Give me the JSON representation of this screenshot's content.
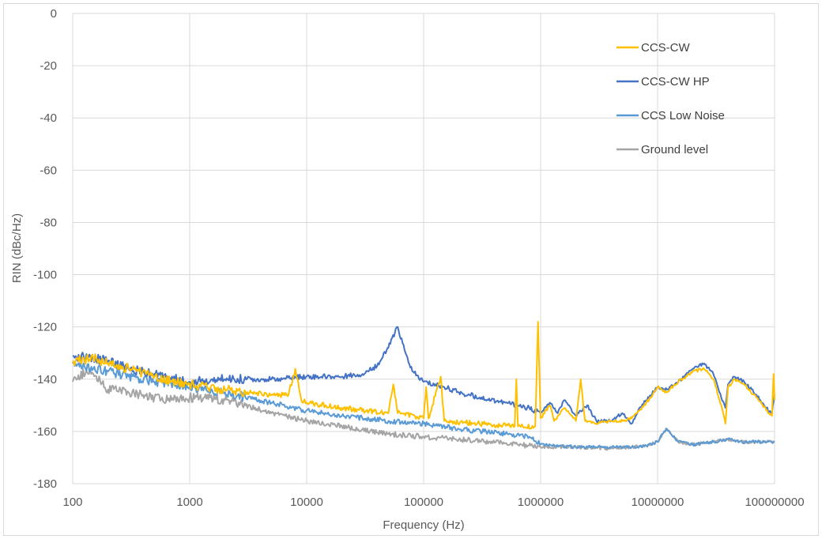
{
  "chart_data": {
    "type": "line",
    "xscale": "log",
    "xlabel": "Frequency (Hz)",
    "ylabel": "RIN (dBc/Hz)",
    "xlim": [
      100,
      100000000
    ],
    "ylim": [
      -180,
      0
    ],
    "x_ticks": [
      "100",
      "1000",
      "10000",
      "100000",
      "1000000",
      "10000000",
      "100000000"
    ],
    "y_ticks": [
      "0",
      "-20",
      "-40",
      "-60",
      "-80",
      "-100",
      "-120",
      "-140",
      "-160",
      "-180"
    ],
    "grid": true,
    "legend_position": "top-right",
    "series": [
      {
        "name": "CCS-CW",
        "color": "#FFC000",
        "points": [
          [
            100,
            -133
          ],
          [
            150,
            -132
          ],
          [
            200,
            -134
          ],
          [
            300,
            -136
          ],
          [
            500,
            -139
          ],
          [
            1000,
            -142
          ],
          [
            2000,
            -144
          ],
          [
            3000,
            -145
          ],
          [
            5000,
            -146
          ],
          [
            7000,
            -146
          ],
          [
            8000,
            -136
          ],
          [
            9000,
            -148
          ],
          [
            10000,
            -149
          ],
          [
            20000,
            -151
          ],
          [
            50000,
            -153
          ],
          [
            55000,
            -142
          ],
          [
            60000,
            -153
          ],
          [
            100000,
            -155
          ],
          [
            105000,
            -143
          ],
          [
            110000,
            -155
          ],
          [
            140000,
            -139
          ],
          [
            150000,
            -156
          ],
          [
            300000,
            -157
          ],
          [
            600000,
            -158
          ],
          [
            620000,
            -140
          ],
          [
            640000,
            -158
          ],
          [
            900000,
            -158
          ],
          [
            950000,
            -118
          ],
          [
            1000000,
            -155
          ],
          [
            1200000,
            -150
          ],
          [
            1300000,
            -156
          ],
          [
            1600000,
            -151
          ],
          [
            2000000,
            -156
          ],
          [
            2200000,
            -140
          ],
          [
            2400000,
            -156
          ],
          [
            3000000,
            -157
          ],
          [
            4000000,
            -156
          ],
          [
            5000000,
            -156
          ],
          [
            6000000,
            -155
          ],
          [
            7000000,
            -152
          ],
          [
            8000000,
            -149
          ],
          [
            10000000,
            -143
          ],
          [
            12000000,
            -145
          ],
          [
            15000000,
            -141
          ],
          [
            20000000,
            -137
          ],
          [
            25000000,
            -136
          ],
          [
            30000000,
            -140
          ],
          [
            35000000,
            -150
          ],
          [
            38000000,
            -157
          ],
          [
            40000000,
            -143
          ],
          [
            45000000,
            -140
          ],
          [
            55000000,
            -142
          ],
          [
            70000000,
            -147
          ],
          [
            85000000,
            -152
          ],
          [
            95000000,
            -154
          ],
          [
            98000000,
            -138
          ],
          [
            100000000,
            -148
          ]
        ]
      },
      {
        "name": "CCS-CW HP",
        "color": "#4472C4",
        "points": [
          [
            100,
            -131
          ],
          [
            150,
            -132
          ],
          [
            200,
            -133
          ],
          [
            300,
            -136
          ],
          [
            500,
            -138
          ],
          [
            1000,
            -141
          ],
          [
            2000,
            -140
          ],
          [
            5000,
            -140
          ],
          [
            10000,
            -139
          ],
          [
            20000,
            -139
          ],
          [
            30000,
            -138
          ],
          [
            40000,
            -135
          ],
          [
            50000,
            -128
          ],
          [
            60000,
            -120
          ],
          [
            70000,
            -130
          ],
          [
            80000,
            -137
          ],
          [
            100000,
            -141
          ],
          [
            150000,
            -143
          ],
          [
            200000,
            -145
          ],
          [
            300000,
            -147
          ],
          [
            500000,
            -149
          ],
          [
            800000,
            -151
          ],
          [
            1000000,
            -153
          ],
          [
            1200000,
            -149
          ],
          [
            1400000,
            -153
          ],
          [
            1600000,
            -148
          ],
          [
            2000000,
            -154
          ],
          [
            2500000,
            -150
          ],
          [
            3000000,
            -156
          ],
          [
            4000000,
            -156
          ],
          [
            5000000,
            -153
          ],
          [
            6000000,
            -157
          ],
          [
            7000000,
            -151
          ],
          [
            8000000,
            -148
          ],
          [
            10000000,
            -143
          ],
          [
            12000000,
            -144
          ],
          [
            15000000,
            -141
          ],
          [
            20000000,
            -136
          ],
          [
            25000000,
            -134
          ],
          [
            30000000,
            -138
          ],
          [
            35000000,
            -147
          ],
          [
            38000000,
            -151
          ],
          [
            40000000,
            -142
          ],
          [
            45000000,
            -139
          ],
          [
            55000000,
            -141
          ],
          [
            70000000,
            -146
          ],
          [
            85000000,
            -151
          ],
          [
            95000000,
            -153
          ],
          [
            100000000,
            -146
          ]
        ]
      },
      {
        "name": "CCS Low Noise",
        "color": "#5B9BD5",
        "points": [
          [
            100,
            -134
          ],
          [
            150,
            -136
          ],
          [
            200,
            -137
          ],
          [
            300,
            -139
          ],
          [
            500,
            -141
          ],
          [
            1000,
            -143
          ],
          [
            2000,
            -145
          ],
          [
            3000,
            -147
          ],
          [
            5000,
            -149
          ],
          [
            10000,
            -152
          ],
          [
            20000,
            -154
          ],
          [
            50000,
            -156
          ],
          [
            100000,
            -157
          ],
          [
            200000,
            -159
          ],
          [
            500000,
            -161
          ],
          [
            800000,
            -162
          ],
          [
            1000000,
            -165
          ],
          [
            2000000,
            -166
          ],
          [
            4000000,
            -166
          ],
          [
            6000000,
            -166
          ],
          [
            8000000,
            -165.5
          ],
          [
            10000000,
            -164
          ],
          [
            11000000,
            -161
          ],
          [
            12000000,
            -159
          ],
          [
            13000000,
            -161
          ],
          [
            15000000,
            -164
          ],
          [
            20000000,
            -165
          ],
          [
            30000000,
            -164
          ],
          [
            40000000,
            -163
          ],
          [
            50000000,
            -164
          ],
          [
            70000000,
            -164
          ],
          [
            100000000,
            -164
          ]
        ]
      },
      {
        "name": "Ground level",
        "color": "#A5A5A5",
        "points": [
          [
            100,
            -141
          ],
          [
            130,
            -137
          ],
          [
            150,
            -138
          ],
          [
            200,
            -144
          ],
          [
            300,
            -145
          ],
          [
            500,
            -147
          ],
          [
            700,
            -148
          ],
          [
            1000,
            -147
          ],
          [
            1500,
            -147
          ],
          [
            2000,
            -148
          ],
          [
            3000,
            -150
          ],
          [
            5000,
            -153
          ],
          [
            10000,
            -156
          ],
          [
            20000,
            -158
          ],
          [
            50000,
            -161
          ],
          [
            100000,
            -162
          ],
          [
            200000,
            -163
          ],
          [
            500000,
            -164.5
          ],
          [
            1000000,
            -166
          ],
          [
            2000000,
            -166
          ],
          [
            4000000,
            -166.5
          ],
          [
            6000000,
            -166
          ],
          [
            8000000,
            -165.5
          ],
          [
            10000000,
            -164
          ],
          [
            11000000,
            -161
          ],
          [
            12000000,
            -159
          ],
          [
            13000000,
            -161
          ],
          [
            15000000,
            -164
          ],
          [
            20000000,
            -165
          ],
          [
            30000000,
            -164
          ],
          [
            40000000,
            -163
          ],
          [
            50000000,
            -164
          ],
          [
            70000000,
            -164
          ],
          [
            100000000,
            -164
          ]
        ]
      }
    ]
  }
}
